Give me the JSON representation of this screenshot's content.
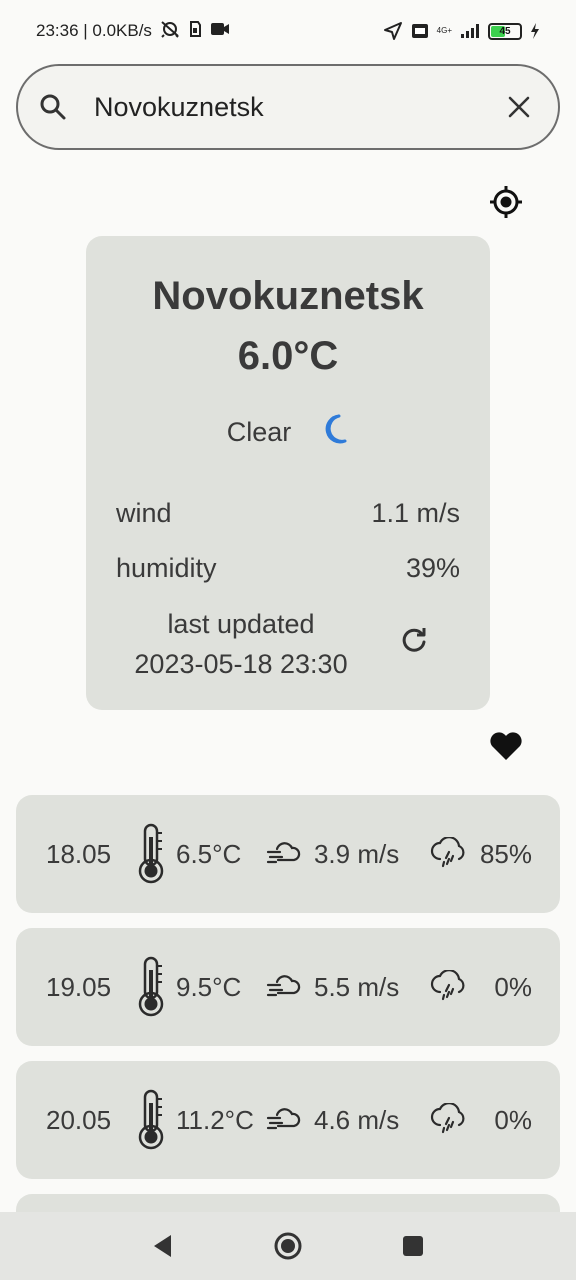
{
  "status_bar": {
    "time_speed": "23:36 | 0.0KB/s",
    "network_label": "4G+",
    "battery_level": "45",
    "battery_fraction": 0.45
  },
  "search": {
    "value": "Novokuznetsk",
    "placeholder": ""
  },
  "current": {
    "city": "Novokuznetsk",
    "temperature": "6.0°C",
    "condition": "Clear",
    "condition_icon": "moon-icon",
    "wind_label": "wind",
    "wind_value": "1.1 m/s",
    "humidity_label": "humidity",
    "humidity_value": "39%",
    "updated_label": "last updated",
    "updated_value": "2023-05-18 23:30",
    "accent_color": "#2f7bd9"
  },
  "forecast": [
    {
      "date": "18.05",
      "temp": "6.5°C",
      "wind": "3.9 m/s",
      "rain": "85%"
    },
    {
      "date": "19.05",
      "temp": "9.5°C",
      "wind": "5.5 m/s",
      "rain": "0%"
    },
    {
      "date": "20.05",
      "temp": "11.2°C",
      "wind": "4.6 m/s",
      "rain": "0%"
    }
  ]
}
